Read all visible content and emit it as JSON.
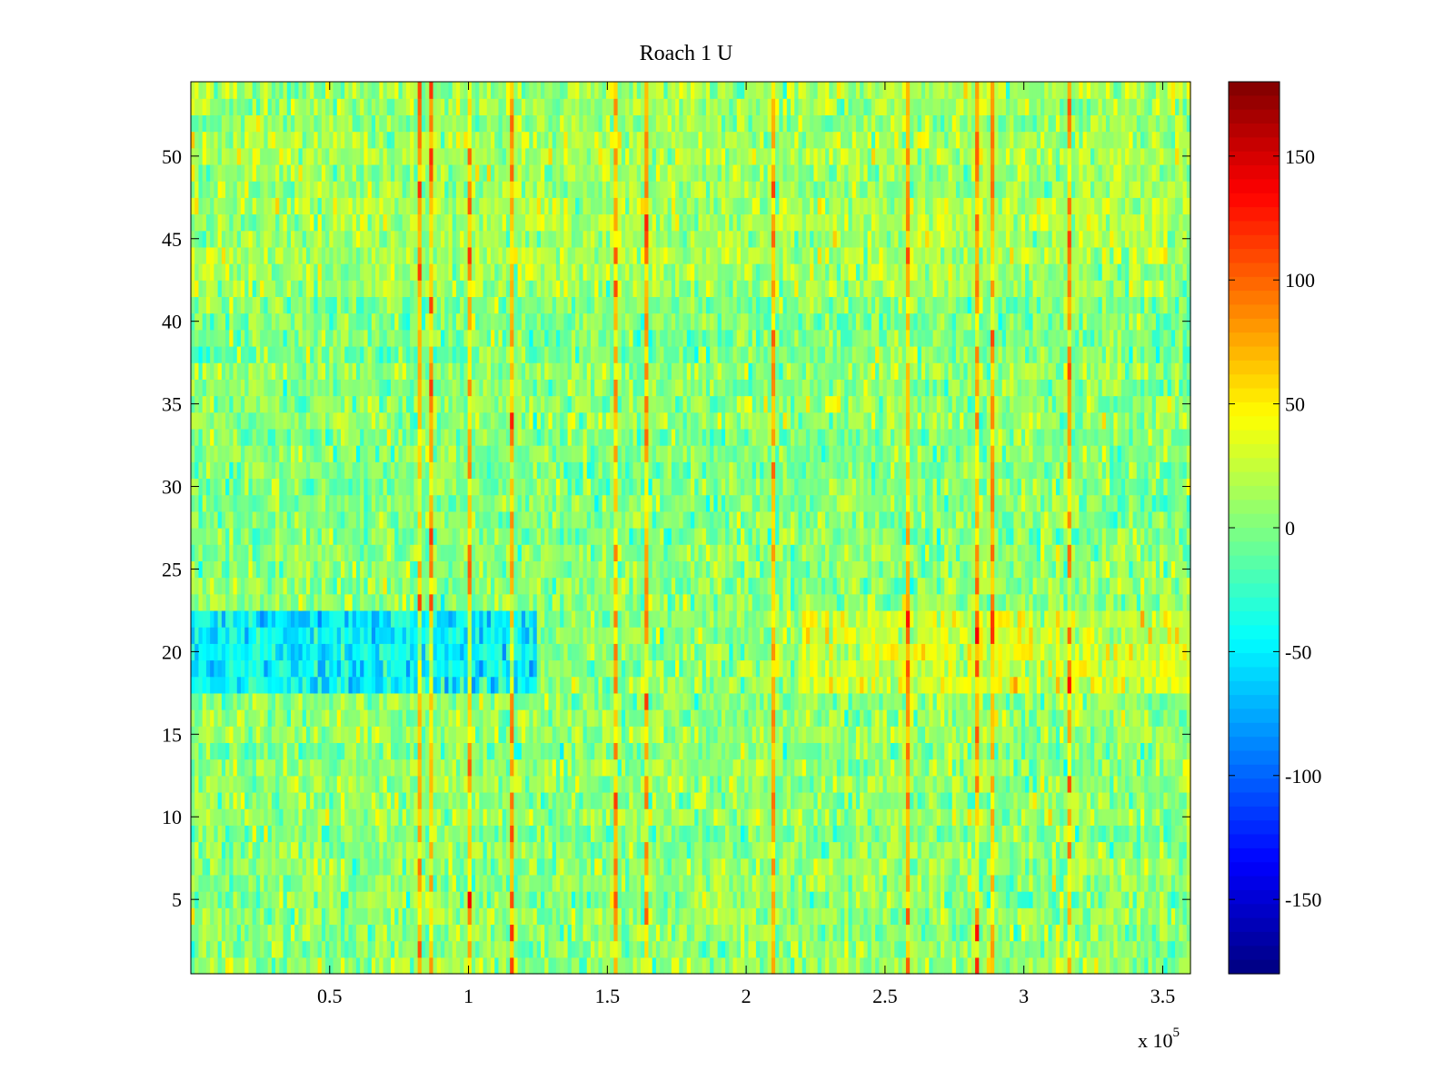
{
  "chart_data": {
    "type": "heatmap",
    "title": "Roach 1 U",
    "xlabel": "",
    "ylabel": "",
    "x_multiplier": "x 10",
    "x_multiplier_exponent": "5",
    "xlim": [
      0,
      3.6
    ],
    "ylim": [
      0.5,
      54.5
    ],
    "x_ticks": [
      0.5,
      1,
      1.5,
      2,
      2.5,
      3,
      3.5
    ],
    "x_tick_labels": [
      "0.5",
      "1",
      "1.5",
      "2",
      "2.5",
      "3",
      "3.5"
    ],
    "y_ticks": [
      5,
      10,
      15,
      20,
      25,
      30,
      35,
      40,
      45,
      50
    ],
    "y_tick_labels": [
      "5",
      "10",
      "15",
      "20",
      "25",
      "30",
      "35",
      "40",
      "45",
      "50"
    ],
    "rows": 54,
    "colormap": "jet",
    "color_range": [
      -180,
      180
    ],
    "colorbar_ticks": [
      150,
      100,
      50,
      0,
      -50,
      -100,
      -150
    ],
    "colorbar_tick_labels": [
      "150",
      "100",
      "50",
      "0",
      "-50",
      "-100",
      "-150"
    ],
    "row_mean_by_block": [
      {
        "rows": [
          1,
          17
        ],
        "x_from": 0.0,
        "x_to": 3.6,
        "mean": 5
      },
      {
        "rows": [
          18,
          22
        ],
        "x_from": 0.0,
        "x_to": 1.25,
        "mean": -45
      },
      {
        "rows": [
          18,
          22
        ],
        "x_from": 1.25,
        "x_to": 2.2,
        "mean": 5
      },
      {
        "rows": [
          18,
          22
        ],
        "x_from": 2.2,
        "x_to": 3.6,
        "mean": 30
      },
      {
        "rows": [
          23,
          41
        ],
        "x_from": 0.0,
        "x_to": 3.6,
        "mean": 3
      },
      {
        "rows": [
          42,
          54
        ],
        "x_from": 0.0,
        "x_to": 3.6,
        "mean": 12
      }
    ],
    "notes": "Dense per-sample matrix; values approximately in range -150 to 150, mostly between -40 and 50."
  }
}
